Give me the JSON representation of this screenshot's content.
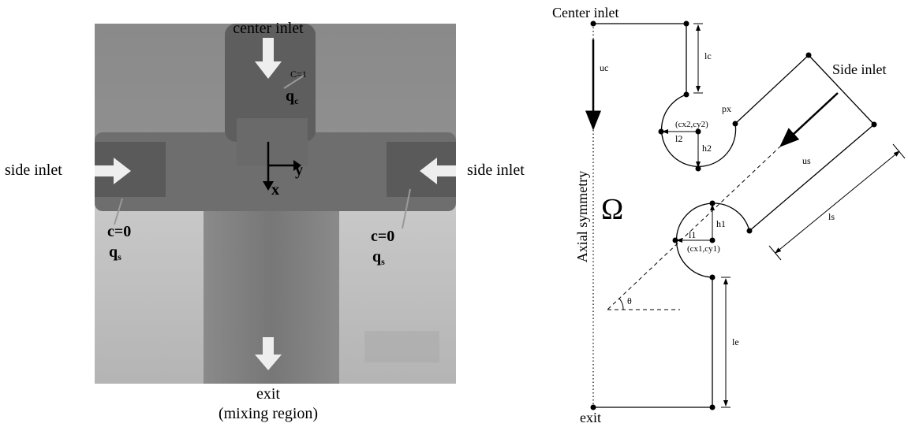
{
  "left_figure": {
    "center_inlet": "center inlet",
    "side_inlet_left": "side inlet",
    "side_inlet_right": "side inlet",
    "center_concentration": "C=1",
    "center_flow": {
      "symbol": "q",
      "subscript": "c"
    },
    "left_concentration": "c=0",
    "left_flow": {
      "symbol": "q",
      "subscript": "s"
    },
    "right_concentration": "c=0",
    "right_flow": {
      "symbol": "q",
      "subscript": "s"
    },
    "axis_y": "y",
    "axis_x": "x",
    "exit": "exit",
    "exit_note": "(mixing region)"
  },
  "right_figure": {
    "center_inlet": "Center inlet",
    "side_inlet": "Side inlet",
    "exit": "exit",
    "axial_symmetry": "Axial symmetry",
    "domain": "Ω",
    "uc": "uc",
    "us": "us",
    "lc": "lc",
    "ls": "ls",
    "le": "le",
    "px": "px",
    "center2": "(cx2,cy2)",
    "l2": "l2",
    "h2": "h2",
    "center1": "(cx1,cy1)",
    "l1": "l1",
    "h1": "h1",
    "theta": "θ"
  }
}
